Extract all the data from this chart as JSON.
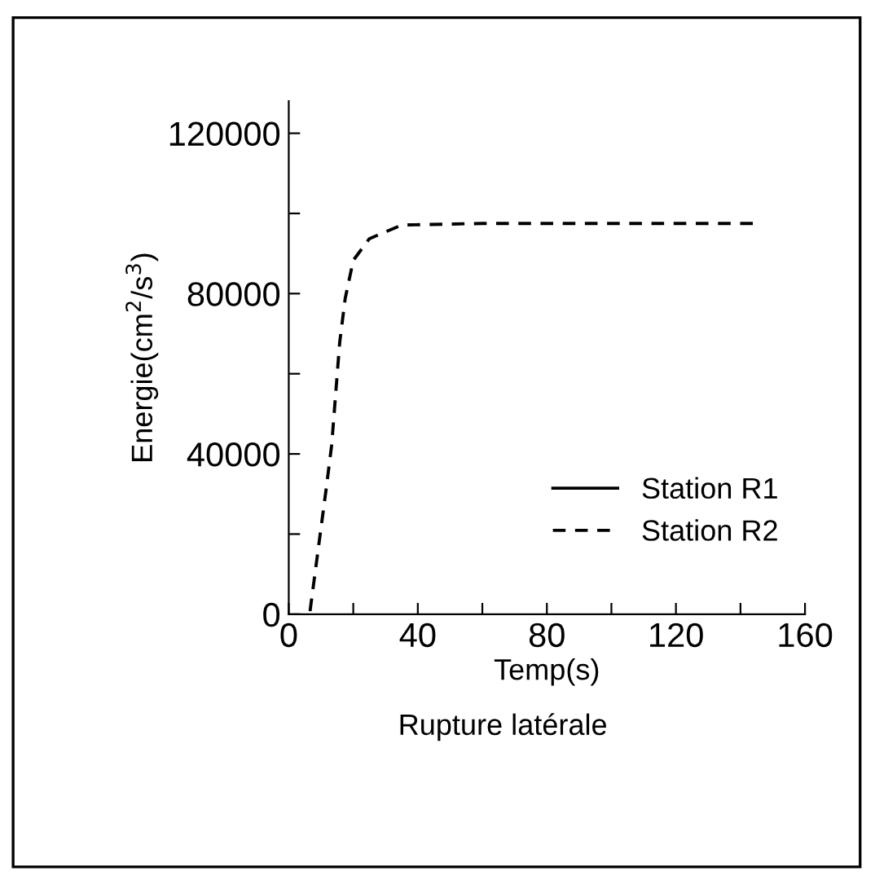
{
  "chart_data": {
    "type": "line",
    "xlabel": "Temp(s)",
    "ylabel": "Energie(cm$^{2}$/s$^{3}$)",
    "annotations": [
      "Rupture latérale"
    ],
    "x": [
      6.6,
      11.6,
      13.3,
      15.8,
      17.5,
      20,
      25,
      35,
      60,
      100,
      145
    ],
    "series": [
      {
        "name": "Station R1",
        "color": "#000000",
        "line_style": "solid",
        "values": [
          null,
          null,
          null,
          null,
          null,
          null,
          null,
          null,
          null,
          null,
          null
        ]
      },
      {
        "name": "Station R2",
        "color": "#000000",
        "line_style": "dashed",
        "values": [
          800,
          31300,
          42200,
          67900,
          78800,
          88300,
          93700,
          97100,
          97500,
          97500,
          97500
        ]
      }
    ],
    "xlim": [
      0,
      160
    ],
    "ylim": [
      0,
      128000
    ],
    "xticks": [
      0,
      {
        "value": 20,
        "label": null
      },
      40,
      {
        "value": 60,
        "label": null
      },
      80,
      {
        "value": 100,
        "label": null
      },
      120,
      {
        "value": 140,
        "label": null
      },
      160
    ],
    "yticks": [
      0,
      {
        "value": 20000,
        "label": null
      },
      40000,
      {
        "value": 60000,
        "label": null
      },
      80000,
      {
        "value": 100000,
        "label": null
      },
      120000
    ],
    "grid": false,
    "legend": "bottom right",
    "marker": "none"
  }
}
